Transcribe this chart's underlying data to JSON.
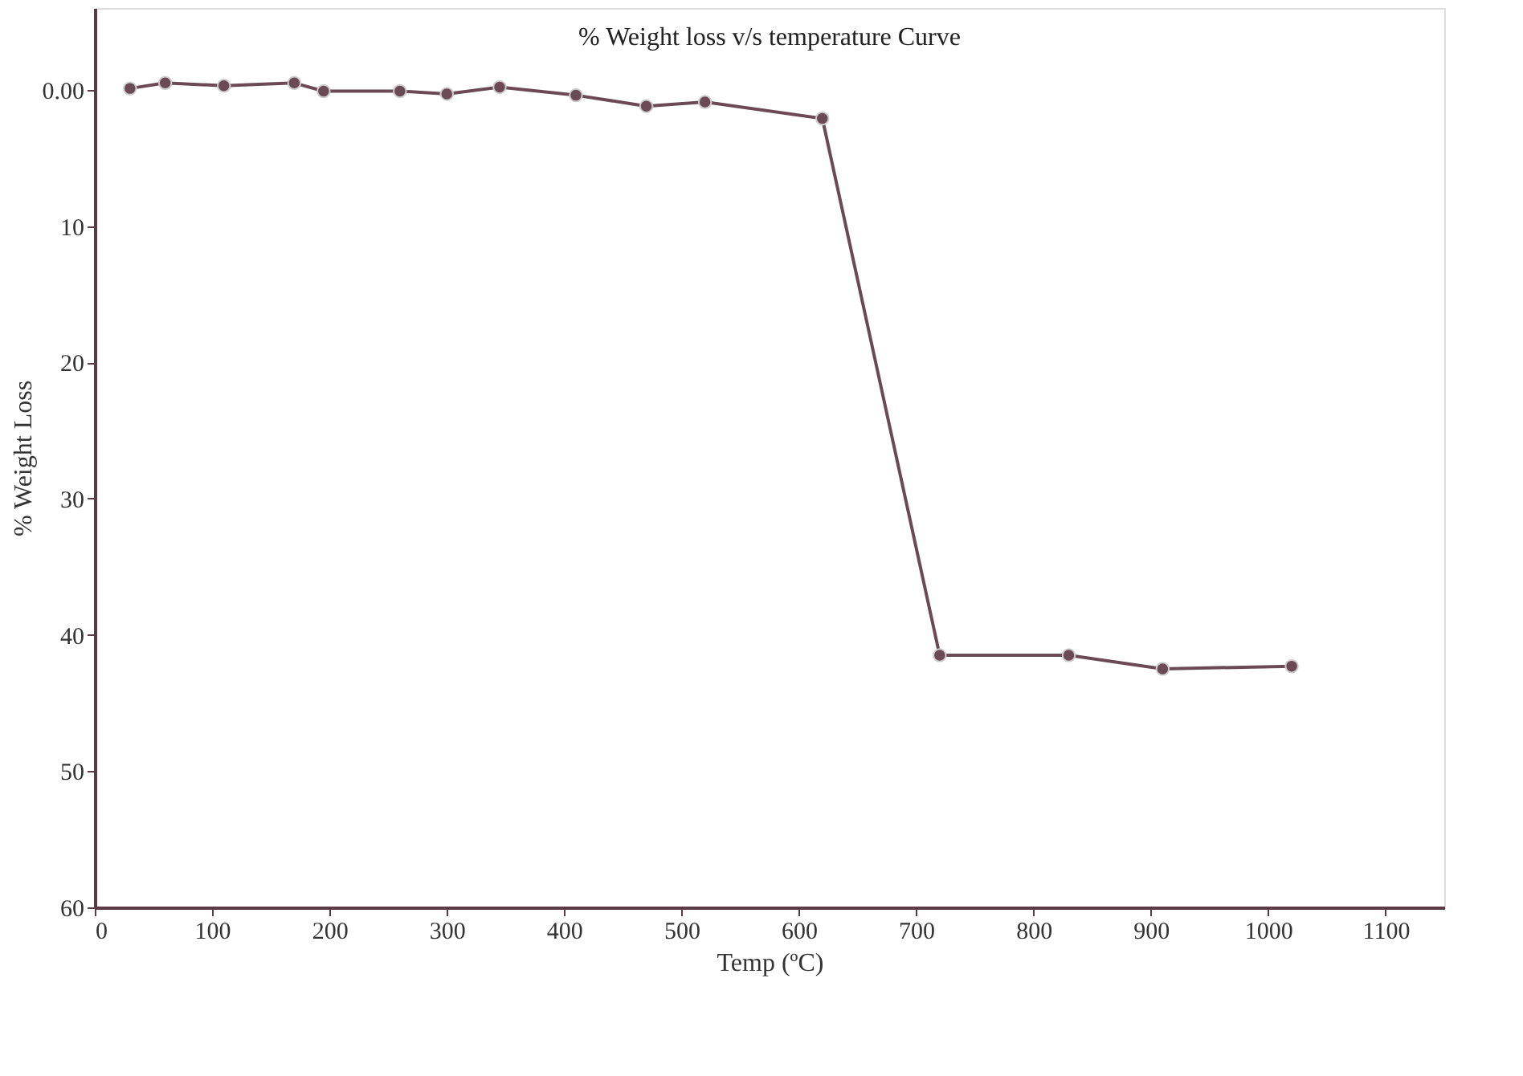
{
  "chart_data": {
    "type": "line",
    "title": "% Weight loss v/s temperature Curve",
    "xlabel": "Temp (ºC)",
    "ylabel": "% Weight Loss",
    "x": [
      30,
      60,
      110,
      170,
      195,
      260,
      300,
      345,
      410,
      470,
      520,
      620,
      720,
      830,
      910,
      1020
    ],
    "series": [
      {
        "color": "#6b4a55",
        "values": [
          -0.1,
          -0.5,
          -0.3,
          -0.5,
          0.1,
          0.1,
          0.3,
          -0.2,
          0.4,
          1.2,
          0.9,
          2.1,
          41.5,
          41.5,
          42.5,
          42.3
        ]
      }
    ],
    "xlim": [
      0,
      1150
    ],
    "xticks": [
      0,
      100,
      200,
      300,
      400,
      500,
      600,
      700,
      800,
      900,
      1000,
      1100
    ],
    "ylim": [
      60,
      -6
    ],
    "yticks": [
      {
        "value": 0,
        "label": "0.00"
      },
      10,
      20,
      30,
      40,
      50,
      60
    ],
    "grid": false,
    "marker": "circle",
    "line_style": "solid"
  }
}
